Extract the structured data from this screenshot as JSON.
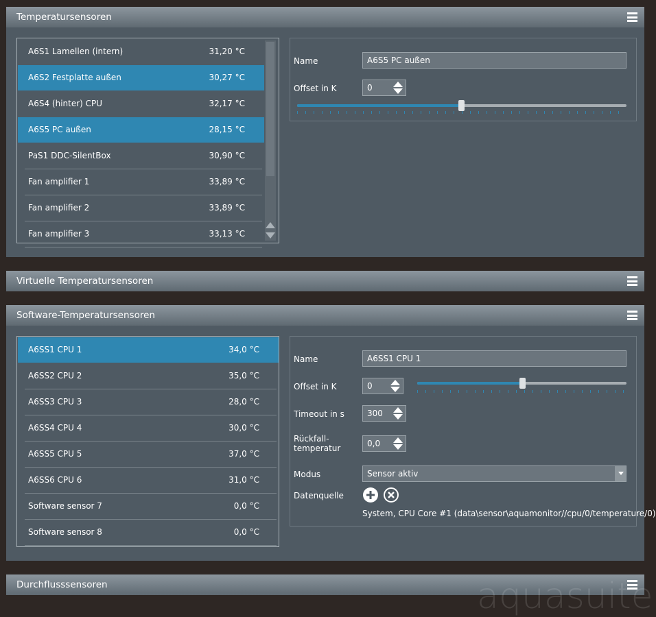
{
  "panels": [
    {
      "title": "Temperatursensoren",
      "sensors": [
        {
          "name": "A6S1 Lamellen (intern)",
          "value": "31,20 °C"
        },
        {
          "name": "A6S2 Festplatte außen",
          "value": "30,27 °C"
        },
        {
          "name": "A6S4 (hinter) CPU",
          "value": "32,17 °C"
        },
        {
          "name": "A6S5 PC außen",
          "value": "28,15 °C"
        },
        {
          "name": "PaS1 DDC-SilentBox",
          "value": "30,90 °C"
        },
        {
          "name": "Fan amplifier 1",
          "value": "33,89 °C"
        },
        {
          "name": "Fan amplifier 2",
          "value": "33,89 °C"
        },
        {
          "name": "Fan amplifier 3",
          "value": "33,13 °C"
        }
      ],
      "details": {
        "name_label": "Name",
        "name_value": "A6S5 PC außen",
        "offset_label": "Offset in K",
        "offset_value": "0"
      }
    },
    {
      "title": "Virtuelle Temperatursensoren"
    },
    {
      "title": "Software-Temperatursensoren",
      "sensors": [
        {
          "name": "A6SS1 CPU 1",
          "value": "34,0 °C"
        },
        {
          "name": "A6SS2 CPU 2",
          "value": "35,0 °C"
        },
        {
          "name": "A6SS3 CPU 3",
          "value": "28,0 °C"
        },
        {
          "name": "A6SS4 CPU 4",
          "value": "30,0 °C"
        },
        {
          "name": "A6SS5 CPU 5",
          "value": "37,0 °C"
        },
        {
          "name": "A6SS6 CPU 6",
          "value": "31,0 °C"
        },
        {
          "name": "Software sensor 7",
          "value": "0,0 °C"
        },
        {
          "name": "Software sensor 8",
          "value": "0,0 °C"
        }
      ],
      "details": {
        "name_label": "Name",
        "name_value": "A6SS1 CPU 1",
        "offset_label": "Offset in K",
        "offset_value": "0",
        "timeout_label": "Timeout in s",
        "timeout_value": "300",
        "fallback_label": "Rückfall-\ntemperatur",
        "fallback_value": "0,0",
        "mode_label": "Modus",
        "mode_value": "Sensor aktiv",
        "source_label": "Datenquelle",
        "source_value": "System, CPU Core #1 (data\\sensor\\aquamonitor//cpu/0/temperature/0)"
      }
    },
    {
      "title": "Durchflusssensoren"
    }
  ],
  "watermark": "aquasuite"
}
